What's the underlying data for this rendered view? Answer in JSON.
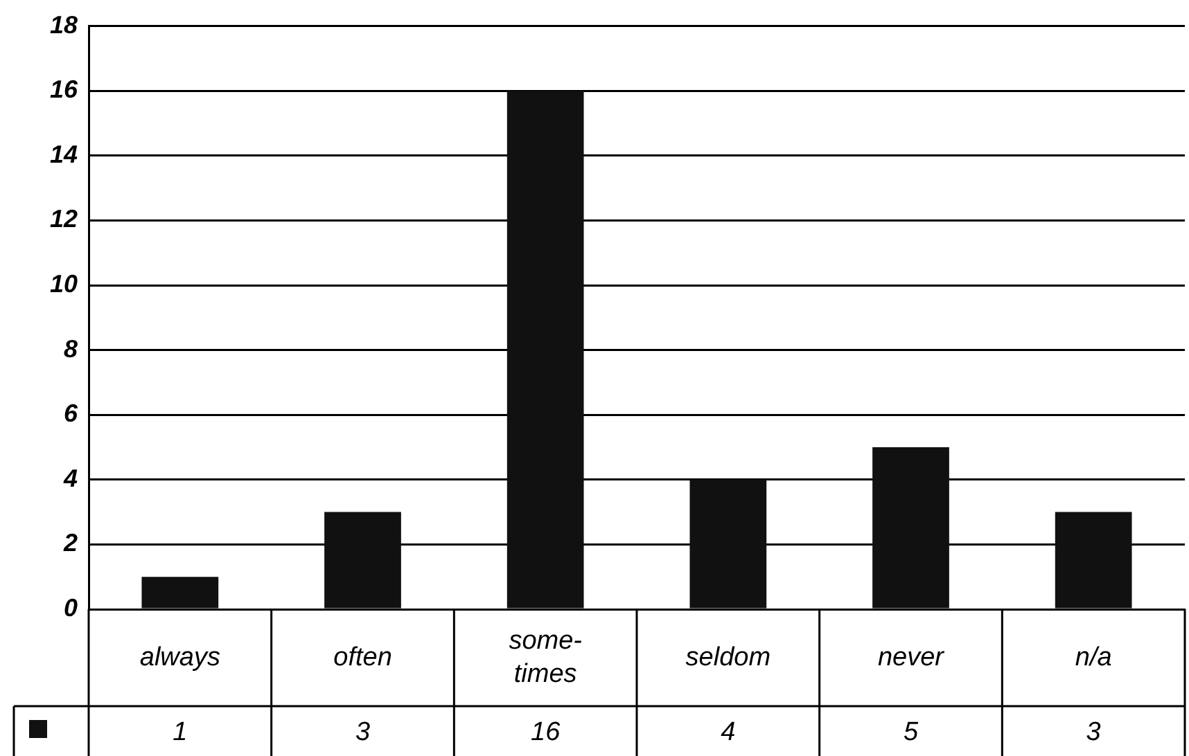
{
  "chart_data": {
    "type": "bar",
    "categories": [
      "always",
      "often",
      "some-times",
      "seldom",
      "never",
      "n/a"
    ],
    "series": [
      {
        "color": "#111111",
        "values": [
          1,
          3,
          16,
          4,
          5,
          3
        ]
      }
    ],
    "ylim": [
      0,
      18
    ],
    "yticks": [
      0,
      2,
      4,
      6,
      8,
      10,
      12,
      14,
      16,
      18
    ],
    "grid": "y",
    "legend": false,
    "data_labels": true
  }
}
